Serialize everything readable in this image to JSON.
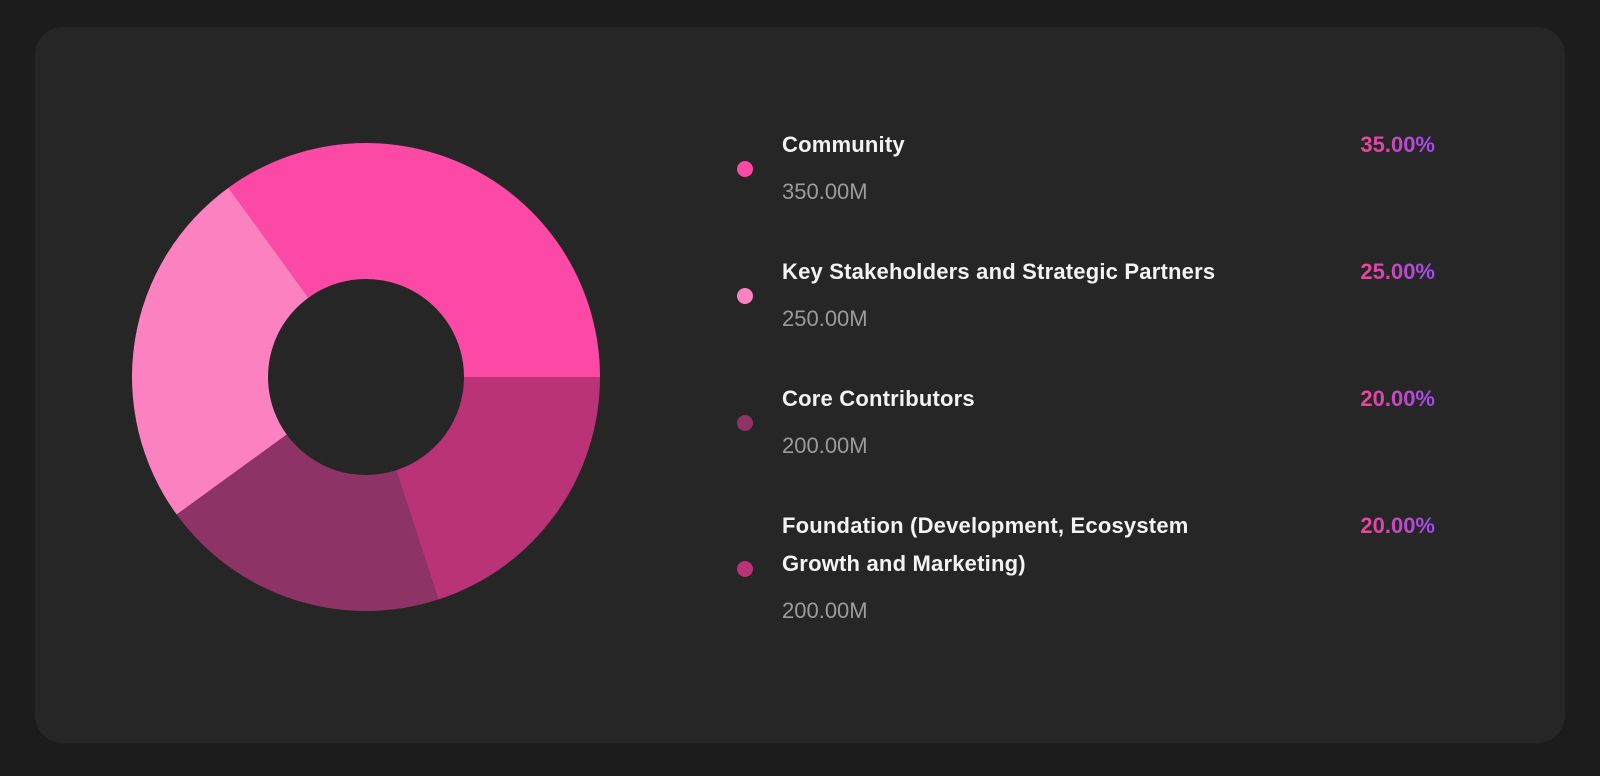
{
  "page": {
    "background": "#1c1c1c"
  },
  "card": {
    "background": "#262626"
  },
  "chart_data": {
    "type": "pie",
    "subtype": "donut",
    "title": "",
    "categories": [
      "Community",
      "Key Stakeholders and Strategic Partners",
      "Core Contributors",
      "Foundation (Development, Ecosystem Growth and Marketing)"
    ],
    "values": [
      35,
      25,
      20,
      20
    ],
    "slices": [
      {
        "label": "Community",
        "value": 35,
        "percent_label": "35.00%",
        "amount_label": "350.00M",
        "color": "#fc49a6"
      },
      {
        "label": "Key Stakeholders and Strategic Partners",
        "value": 25,
        "percent_label": "25.00%",
        "amount_label": "250.00M",
        "color": "#fb81c1"
      },
      {
        "label": "Core Contributors",
        "value": 20,
        "percent_label": "20.00%",
        "amount_label": "200.00M",
        "color": "#8e3365"
      },
      {
        "label": "Foundation (Development, Ecosystem Growth and Marketing)",
        "value": 20,
        "percent_label": "20.00%",
        "amount_label": "200.00M",
        "color": "#b93376"
      }
    ],
    "layout": {
      "legend_position": "right",
      "direction": "counterclockwise",
      "start_angle_deg": 0,
      "outer_radius_px": 234,
      "inner_radius_px": 98,
      "grid": false,
      "labels_on_chart": false
    },
    "styles": {
      "label_color": "#f3f3f3",
      "amount_color": "#9b9b9b",
      "percent_gradient_from": "#ee4795",
      "percent_gradient_to": "#9d4cf2"
    }
  }
}
